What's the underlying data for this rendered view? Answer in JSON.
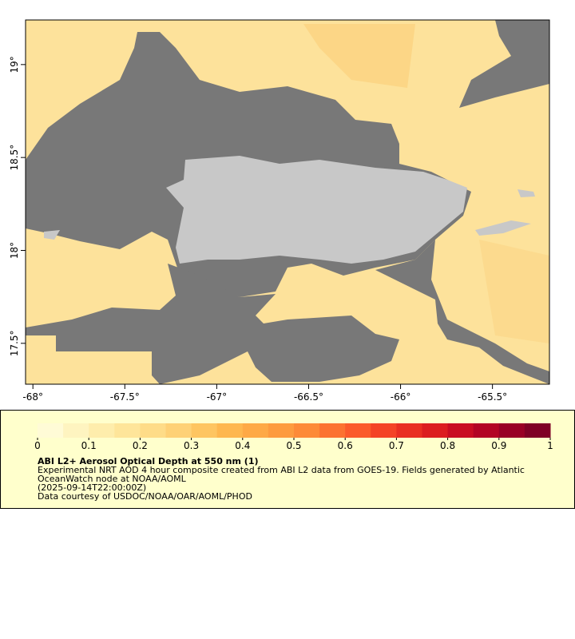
{
  "map": {
    "xlim": [
      -68.04,
      -65.19
    ],
    "ylim": [
      17.28,
      19.24
    ],
    "xticks": [
      {
        "value": -68,
        "label": "-68°"
      },
      {
        "value": -67.5,
        "label": "-67.5°"
      },
      {
        "value": -67,
        "label": "-67°"
      },
      {
        "value": -66.5,
        "label": "-66.5°"
      },
      {
        "value": -66,
        "label": "-66°"
      },
      {
        "value": -65.5,
        "label": "-65.5°"
      }
    ],
    "yticks": [
      {
        "value": 17.5,
        "label": "17.5°"
      },
      {
        "value": 18,
        "label": "18°"
      },
      {
        "value": 18.5,
        "label": "18.5°"
      },
      {
        "value": 19,
        "label": "19°"
      }
    ]
  },
  "colorbar": {
    "lim": [
      0,
      1
    ],
    "ticks": [
      0,
      0.1,
      0.2,
      0.3,
      0.4,
      0.5,
      0.6,
      0.7,
      0.8,
      0.9,
      1
    ],
    "colors": [
      "#fffbd6",
      "#fef4c0",
      "#feedac",
      "#fee59a",
      "#fedc88",
      "#fed176",
      "#fec561",
      "#feb74f",
      "#fea946",
      "#fd9b3f",
      "#fd8a38",
      "#fc7231",
      "#fb5a2b",
      "#f44326",
      "#e92e22",
      "#dc1d20",
      "#c90d22",
      "#b30424",
      "#990026",
      "#7f0026"
    ]
  },
  "caption": {
    "title": "ABI L2+ Aerosol Optical Depth at 550 nm (1)",
    "lines": [
      "Experimental NRT AOD 4 hour composite created from ABI L2 data from GOES-19. Fields generated by Atlantic",
      "OceanWatch node at NOAA/AOML",
      "(2025-09-14T22:00:00Z)",
      "Data courtesy of USDOC/NOAA/OAR/AOML/PHOD"
    ]
  }
}
